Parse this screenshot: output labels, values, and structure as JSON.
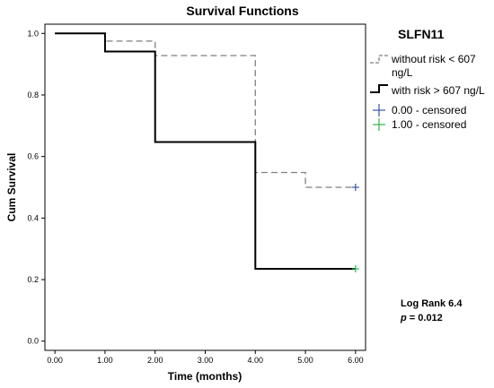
{
  "chart_data": {
    "type": "line",
    "step": true,
    "title": "Survival Functions",
    "xlabel": "Time (months)",
    "ylabel": "Cum Survival",
    "xlim": [
      -0.2,
      6.2
    ],
    "ylim": [
      -0.03,
      1.03
    ],
    "xticks": [
      0,
      1,
      2,
      3,
      4,
      5,
      6
    ],
    "xtick_labels": [
      "0.00",
      "1.00",
      "2.00",
      "3.00",
      "4.00",
      "5.00",
      "6.00"
    ],
    "yticks": [
      0,
      0.2,
      0.4,
      0.6,
      0.8,
      1.0
    ],
    "ytick_labels": [
      "0.0",
      "0.2",
      "0.4",
      "0.6",
      "0.8",
      "1.0"
    ],
    "grid": false,
    "legend_title": "SLFN11",
    "legend_position": "right",
    "series": [
      {
        "name": "without risk < 607 ng/L",
        "style": "dashed",
        "color": "#7f7f7f",
        "steps": [
          [
            0,
            1.0
          ],
          [
            1,
            0.975
          ],
          [
            2,
            0.928
          ],
          [
            4,
            0.548
          ],
          [
            5,
            0.5
          ],
          [
            6,
            0.5
          ]
        ],
        "censored": [
          [
            6,
            0.5
          ]
        ],
        "censor_color": "#3a55a5"
      },
      {
        "name": "with risk > 607 ng/L",
        "style": "solid",
        "color": "#000000",
        "steps": [
          [
            0,
            1.0
          ],
          [
            1,
            0.941
          ],
          [
            2,
            0.647
          ],
          [
            4,
            0.235
          ],
          [
            6,
            0.235
          ]
        ],
        "censored": [
          [
            6,
            0.235
          ]
        ],
        "censor_color": "#2fb34a"
      }
    ],
    "censor_legend": [
      {
        "name": "0.00 - censored",
        "color": "#3a55a5"
      },
      {
        "name": "1.00 - censored",
        "color": "#2fb34a"
      }
    ],
    "annotations": {
      "stat_line1": "Log Rank 6.4",
      "stat_p_symbol": "p",
      "stat_p_rest": " = 0.012"
    }
  }
}
